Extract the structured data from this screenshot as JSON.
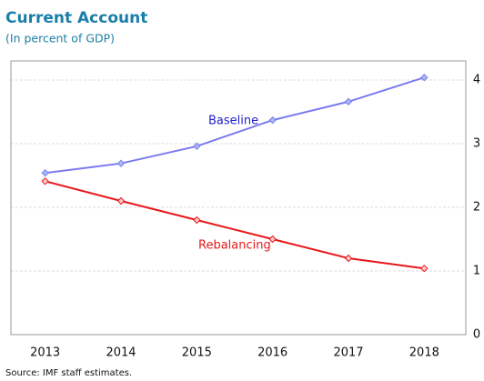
{
  "chart_data": {
    "type": "line",
    "title": "Current Account",
    "subtitle": "(In percent of GDP)",
    "source": "Source: IMF staff estimates.",
    "categories": [
      "2013",
      "2014",
      "2015",
      "2016",
      "2017",
      "2018"
    ],
    "series": [
      {
        "name": "Baseline",
        "color": "#7b7bf0",
        "values": [
          2.54,
          2.69,
          2.96,
          3.37,
          3.66,
          4.04
        ]
      },
      {
        "name": "Rebalancing",
        "color": "#e8171b",
        "values": [
          2.41,
          2.1,
          1.8,
          1.5,
          1.2,
          1.04
        ]
      }
    ],
    "ylim": [
      0,
      4.3
    ],
    "yticks": [
      0,
      1,
      2,
      3,
      4
    ],
    "grid": true,
    "y_axis_side": "right"
  }
}
